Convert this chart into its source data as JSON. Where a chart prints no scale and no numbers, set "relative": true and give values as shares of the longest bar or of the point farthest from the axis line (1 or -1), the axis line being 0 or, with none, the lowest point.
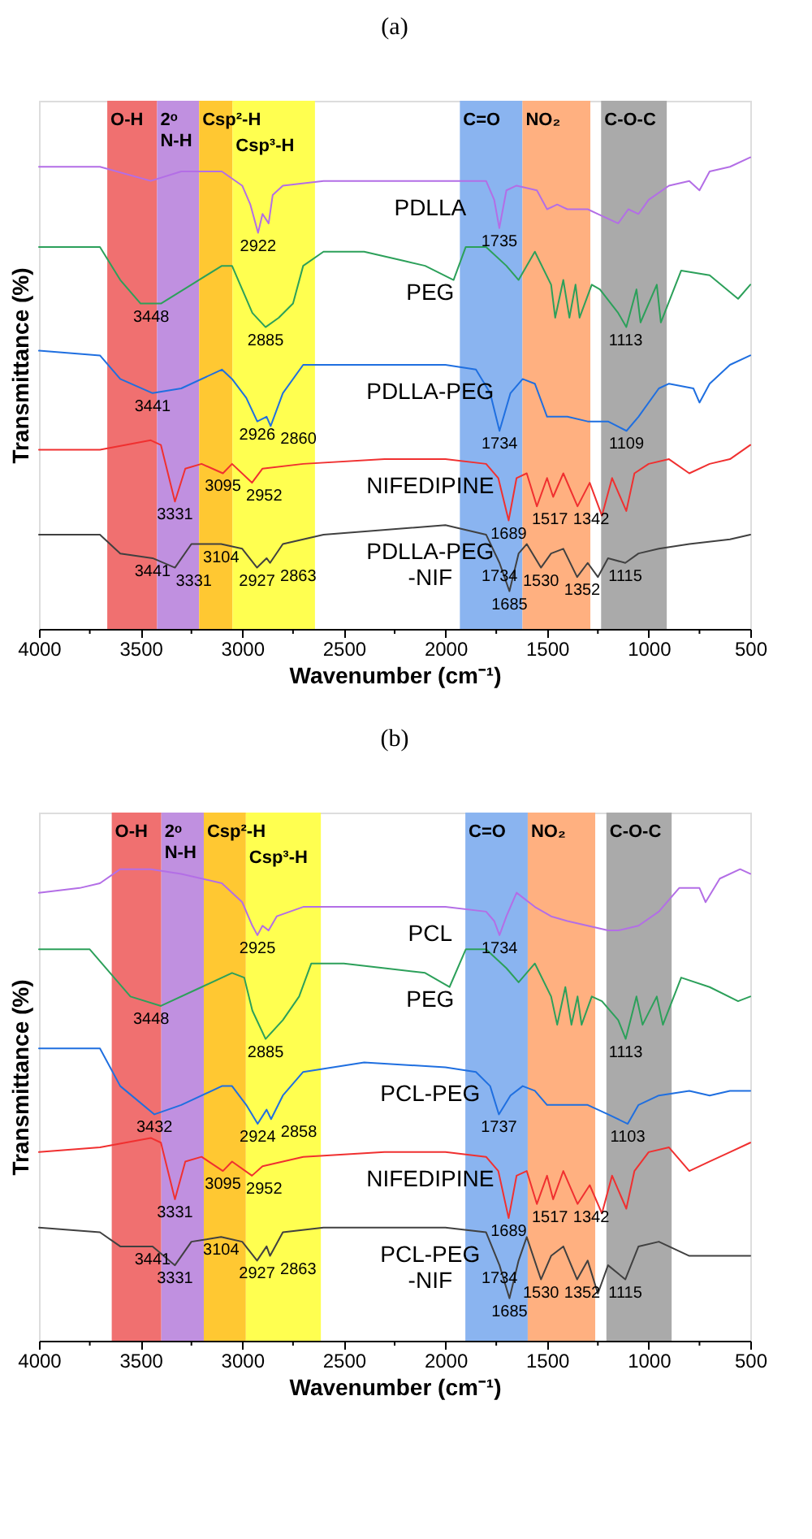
{
  "chart_data": [
    {
      "type": "line",
      "title": "(a)",
      "xlabel": "Wavenumber (cm⁻¹)",
      "ylabel": "Transmittance (%)",
      "relative": true,
      "xlim": [
        4000,
        500
      ],
      "xticks": [
        4000,
        {
          "value": 3750,
          "label": null
        },
        3500,
        {
          "value": 3250,
          "label": null
        },
        3000,
        {
          "value": 2750,
          "label": null
        },
        2500,
        {
          "value": 2250,
          "label": null
        },
        2000,
        {
          "value": 1750,
          "label": null
        },
        1500,
        {
          "value": 1250,
          "label": null
        },
        1000,
        {
          "value": 750,
          "label": null
        },
        500
      ],
      "bands": [
        {
          "axis": "x",
          "from": 3664,
          "to": 3419,
          "label": "O-H",
          "color": "#f07070"
        },
        {
          "axis": "x",
          "from": 3419,
          "to": 3212,
          "label": "2ᵒ N-H",
          "color": "#c090e0"
        },
        {
          "axis": "x",
          "from": 3212,
          "to": 3048,
          "label": "Csp²-H",
          "color": "#ffc832"
        },
        {
          "axis": "x",
          "from": 3048,
          "to": 2642,
          "label": "Csp³-H",
          "color": "#ffff50"
        },
        {
          "axis": "x",
          "from": 1929,
          "to": 1621,
          "label": "C=O",
          "color": "#8ab4f0"
        },
        {
          "axis": "x",
          "from": 1621,
          "to": 1287,
          "label": "NO₂",
          "color": "#ffb080"
        },
        {
          "axis": "x",
          "from": 1234,
          "to": 911,
          "label": "C-O-C",
          "color": "#aaaaaa"
        }
      ],
      "series": [
        {
          "name": "PDLLA",
          "color": "#b36ee6",
          "x": [
            4000,
            3700,
            3450,
            3300,
            3100,
            3000,
            2960,
            2922,
            2900,
            2870,
            2850,
            2800,
            2600,
            2000,
            1800,
            1760,
            1735,
            1700,
            1650,
            1550,
            1500,
            1450,
            1400,
            1300,
            1250,
            1150,
            1100,
            1050,
            1000,
            900,
            800,
            750,
            700,
            600,
            500
          ],
          "values": [
            0.98,
            0.98,
            0.95,
            0.97,
            0.97,
            0.94,
            0.9,
            0.84,
            0.88,
            0.86,
            0.92,
            0.94,
            0.95,
            0.95,
            0.95,
            0.91,
            0.85,
            0.93,
            0.94,
            0.93,
            0.89,
            0.9,
            0.89,
            0.89,
            0.88,
            0.86,
            0.89,
            0.88,
            0.91,
            0.94,
            0.95,
            0.93,
            0.97,
            0.98,
            1
          ]
        },
        {
          "name": "PEG",
          "color": "#2ca05a",
          "x": [
            4000,
            3800,
            3700,
            3600,
            3500,
            3400,
            3250,
            3100,
            3050,
            3000,
            2950,
            2885,
            2820,
            2750,
            2700,
            2600,
            2400,
            2200,
            2100,
            1960,
            1900,
            1800,
            1700,
            1640,
            1560,
            1480,
            1460,
            1420,
            1390,
            1360,
            1340,
            1280,
            1240,
            1150,
            1110,
            1060,
            1040,
            960,
            940,
            840,
            700,
            560,
            500
          ],
          "values": [
            0.81,
            0.81,
            0.81,
            0.74,
            0.69,
            0.69,
            0.73,
            0.77,
            0.77,
            0.72,
            0.67,
            0.64,
            0.66,
            0.69,
            0.77,
            0.8,
            0.8,
            0.78,
            0.77,
            0.74,
            0.81,
            0.81,
            0.77,
            0.74,
            0.8,
            0.73,
            0.66,
            0.74,
            0.66,
            0.73,
            0.66,
            0.73,
            0.72,
            0.67,
            0.64,
            0.72,
            0.65,
            0.73,
            0.65,
            0.76,
            0.75,
            0.7,
            0.73
          ]
        },
        {
          "name": "PDLLA-PEG",
          "color": "#1f6fe0",
          "x": [
            4000,
            3700,
            3600,
            3441,
            3300,
            3100,
            3050,
            2980,
            2926,
            2880,
            2860,
            2800,
            2700,
            2400,
            2000,
            1850,
            1780,
            1734,
            1680,
            1620,
            1560,
            1500,
            1400,
            1300,
            1200,
            1109,
            1050,
            950,
            900,
            780,
            750,
            700,
            600,
            500
          ],
          "values": [
            0.59,
            0.58,
            0.53,
            0.5,
            0.51,
            0.55,
            0.53,
            0.49,
            0.44,
            0.45,
            0.43,
            0.5,
            0.56,
            0.56,
            0.56,
            0.55,
            0.5,
            0.42,
            0.5,
            0.53,
            0.52,
            0.45,
            0.45,
            0.44,
            0.44,
            0.42,
            0.45,
            0.51,
            0.52,
            0.51,
            0.48,
            0.52,
            0.56,
            0.58
          ]
        },
        {
          "name": "NIFEDIPINE",
          "color": "#f03030",
          "x": [
            4000,
            3700,
            3450,
            3400,
            3331,
            3280,
            3200,
            3095,
            3050,
            2952,
            2900,
            2700,
            2300,
            2000,
            1800,
            1740,
            1689,
            1650,
            1600,
            1550,
            1500,
            1470,
            1420,
            1350,
            1290,
            1230,
            1180,
            1110,
            1070,
            1000,
            900,
            800,
            700,
            600,
            500
          ],
          "values": [
            0.38,
            0.38,
            0.4,
            0.39,
            0.27,
            0.34,
            0.35,
            0.33,
            0.35,
            0.31,
            0.34,
            0.35,
            0.36,
            0.36,
            0.35,
            0.32,
            0.23,
            0.32,
            0.33,
            0.26,
            0.32,
            0.28,
            0.33,
            0.26,
            0.31,
            0.24,
            0.32,
            0.25,
            0.33,
            0.35,
            0.36,
            0.33,
            0.35,
            0.36,
            0.39
          ]
        },
        {
          "name": "PDLLA-PEG -NIF",
          "color": "#404040",
          "x": [
            4000,
            3700,
            3600,
            3441,
            3331,
            3250,
            3104,
            3000,
            2927,
            2880,
            2863,
            2800,
            2600,
            2000,
            1800,
            1734,
            1685,
            1640,
            1600,
            1530,
            1480,
            1420,
            1352,
            1300,
            1250,
            1200,
            1115,
            1050,
            950,
            800,
            600,
            500
          ],
          "values": [
            0.2,
            0.2,
            0.16,
            0.15,
            0.13,
            0.18,
            0.18,
            0.17,
            0.13,
            0.15,
            0.14,
            0.18,
            0.2,
            0.22,
            0.2,
            0.14,
            0.08,
            0.16,
            0.18,
            0.13,
            0.16,
            0.17,
            0.11,
            0.14,
            0.11,
            0.15,
            0.14,
            0.16,
            0.17,
            0.18,
            0.19,
            0.2
          ]
        }
      ],
      "annotations": [
        {
          "text": "2922",
          "x": 2922,
          "y": 0.84
        },
        {
          "text": "1735",
          "x": 1735,
          "y": 0.85
        },
        {
          "text": "3448",
          "x": 3448,
          "y": 0.69
        },
        {
          "text": "2885",
          "x": 2885,
          "y": 0.64
        },
        {
          "text": "1113",
          "x": 1113,
          "y": 0.64
        },
        {
          "text": "3441",
          "x": 3441,
          "y": 0.5
        },
        {
          "text": "2926",
          "x": 2926,
          "y": 0.44
        },
        {
          "text": "2860",
          "x": 2860,
          "y": 0.43
        },
        {
          "text": "1734",
          "x": 1734,
          "y": 0.42
        },
        {
          "text": "1109",
          "x": 1109,
          "y": 0.42
        },
        {
          "text": "3331",
          "x": 3331,
          "y": 0.27
        },
        {
          "text": "3095",
          "x": 3095,
          "y": 0.33
        },
        {
          "text": "2952",
          "x": 2952,
          "y": 0.31
        },
        {
          "text": "1689",
          "x": 1689,
          "y": 0.23
        },
        {
          "text": "1517",
          "x": 1517,
          "y": 0.26
        },
        {
          "text": "1342",
          "x": 1342,
          "y": 0.26
        },
        {
          "text": "3441",
          "x": 3441,
          "y": 0.15
        },
        {
          "text": "3331",
          "x": 3331,
          "y": 0.13
        },
        {
          "text": "3104",
          "x": 3104,
          "y": 0.18
        },
        {
          "text": "2927",
          "x": 2927,
          "y": 0.13
        },
        {
          "text": "2863",
          "x": 2863,
          "y": 0.14
        },
        {
          "text": "1734",
          "x": 1734,
          "y": 0.14
        },
        {
          "text": "1685",
          "x": 1685,
          "y": 0.08
        },
        {
          "text": "1530",
          "x": 1530,
          "y": 0.13
        },
        {
          "text": "1352",
          "x": 1352,
          "y": 0.11
        },
        {
          "text": "1115",
          "x": 1115,
          "y": 0.14
        }
      ]
    },
    {
      "type": "line",
      "title": "(b)",
      "xlabel": "Wavenumber (cm⁻¹)",
      "ylabel": "Transmittance (%)",
      "relative": true,
      "xlim": [
        4000,
        500
      ],
      "xticks": [
        4000,
        {
          "value": 3750,
          "label": null
        },
        3500,
        {
          "value": 3250,
          "label": null
        },
        3000,
        {
          "value": 2750,
          "label": null
        },
        2500,
        {
          "value": 2250,
          "label": null
        },
        2000,
        {
          "value": 1750,
          "label": null
        },
        1500,
        {
          "value": 1250,
          "label": null
        },
        1000,
        {
          "value": 750,
          "label": null
        },
        500
      ],
      "bands": [
        {
          "axis": "x",
          "from": 3642,
          "to": 3398,
          "label": "O-H",
          "color": "#f07070"
        },
        {
          "axis": "x",
          "from": 3398,
          "to": 3189,
          "label": "2ᵒ N-H",
          "color": "#c090e0"
        },
        {
          "axis": "x",
          "from": 3189,
          "to": 2982,
          "label": "Csp²-H",
          "color": "#ffc832"
        },
        {
          "axis": "x",
          "from": 2982,
          "to": 2613,
          "label": "Csp³-H",
          "color": "#ffff50"
        },
        {
          "axis": "x",
          "from": 1902,
          "to": 1595,
          "label": "C=O",
          "color": "#8ab4f0"
        },
        {
          "axis": "x",
          "from": 1595,
          "to": 1263,
          "label": "NO₂",
          "color": "#ffb080"
        },
        {
          "axis": "x",
          "from": 1208,
          "to": 887,
          "label": "C-O-C",
          "color": "#aaaaaa"
        }
      ],
      "series": [
        {
          "name": "PCL",
          "color": "#b36ee6",
          "x": [
            4000,
            3800,
            3700,
            3600,
            3450,
            3300,
            3100,
            3000,
            2950,
            2925,
            2900,
            2870,
            2830,
            2700,
            2400,
            2000,
            1800,
            1760,
            1734,
            1700,
            1650,
            1560,
            1480,
            1400,
            1300,
            1200,
            1150,
            1050,
            950,
            850,
            750,
            720,
            650,
            550,
            500
          ],
          "values": [
            0.95,
            0.96,
            0.97,
            1,
            1,
            0.99,
            0.97,
            0.93,
            0.88,
            0.86,
            0.88,
            0.87,
            0.9,
            0.92,
            0.92,
            0.92,
            0.91,
            0.89,
            0.86,
            0.9,
            0.95,
            0.92,
            0.9,
            0.89,
            0.88,
            0.87,
            0.87,
            0.88,
            0.91,
            0.96,
            0.96,
            0.93,
            0.98,
            1,
            0.99
          ]
        },
        {
          "name": "PEG",
          "color": "#2ca05a",
          "x": [
            4000,
            3750,
            3650,
            3550,
            3400,
            3200,
            3050,
            2990,
            2950,
            2885,
            2800,
            2720,
            2660,
            2500,
            2300,
            2100,
            1980,
            1900,
            1800,
            1700,
            1640,
            1560,
            1480,
            1450,
            1410,
            1380,
            1350,
            1330,
            1280,
            1230,
            1150,
            1113,
            1060,
            1030,
            960,
            930,
            840,
            700,
            560,
            500
          ],
          "values": [
            0.83,
            0.83,
            0.78,
            0.73,
            0.71,
            0.75,
            0.78,
            0.77,
            0.7,
            0.64,
            0.68,
            0.73,
            0.8,
            0.8,
            0.79,
            0.78,
            0.75,
            0.83,
            0.83,
            0.79,
            0.76,
            0.8,
            0.73,
            0.67,
            0.75,
            0.67,
            0.73,
            0.67,
            0.73,
            0.72,
            0.68,
            0.64,
            0.73,
            0.67,
            0.73,
            0.67,
            0.77,
            0.75,
            0.72,
            0.73
          ]
        },
        {
          "name": "PCL-PEG",
          "color": "#1f6fe0",
          "x": [
            4000,
            3700,
            3600,
            3432,
            3300,
            3100,
            3050,
            2980,
            2924,
            2880,
            2858,
            2800,
            2700,
            2400,
            2000,
            1850,
            1780,
            1737,
            1680,
            1620,
            1560,
            1500,
            1400,
            1300,
            1200,
            1103,
            1050,
            950,
            800,
            700,
            600,
            500
          ],
          "values": [
            0.62,
            0.62,
            0.54,
            0.48,
            0.5,
            0.54,
            0.54,
            0.5,
            0.46,
            0.49,
            0.47,
            0.52,
            0.57,
            0.59,
            0.58,
            0.57,
            0.54,
            0.48,
            0.52,
            0.54,
            0.53,
            0.5,
            0.5,
            0.5,
            0.48,
            0.46,
            0.5,
            0.52,
            0.53,
            0.52,
            0.53,
            0.53
          ]
        },
        {
          "name": "NIFEDIPINE",
          "color": "#f03030",
          "x": [
            4000,
            3700,
            3450,
            3400,
            3331,
            3280,
            3200,
            3095,
            3050,
            2952,
            2900,
            2700,
            2300,
            2000,
            1800,
            1740,
            1689,
            1650,
            1600,
            1550,
            1500,
            1470,
            1420,
            1350,
            1290,
            1230,
            1180,
            1110,
            1070,
            1000,
            900,
            800,
            700,
            600,
            500
          ],
          "values": [
            0.4,
            0.41,
            0.43,
            0.42,
            0.3,
            0.38,
            0.39,
            0.36,
            0.38,
            0.35,
            0.37,
            0.39,
            0.4,
            0.4,
            0.39,
            0.36,
            0.26,
            0.35,
            0.36,
            0.29,
            0.35,
            0.3,
            0.36,
            0.29,
            0.33,
            0.27,
            0.35,
            0.28,
            0.36,
            0.4,
            0.41,
            0.36,
            0.38,
            0.4,
            0.42
          ]
        },
        {
          "name": "PCL-PEG -NIF",
          "color": "#404040",
          "x": [
            4000,
            3700,
            3600,
            3441,
            3331,
            3250,
            3104,
            3000,
            2927,
            2880,
            2863,
            2800,
            2600,
            2000,
            1800,
            1734,
            1685,
            1640,
            1600,
            1530,
            1480,
            1420,
            1352,
            1300,
            1250,
            1200,
            1115,
            1050,
            950,
            800,
            600,
            500
          ],
          "values": [
            0.24,
            0.23,
            0.2,
            0.2,
            0.16,
            0.21,
            0.22,
            0.21,
            0.17,
            0.2,
            0.18,
            0.23,
            0.24,
            0.24,
            0.23,
            0.16,
            0.09,
            0.17,
            0.22,
            0.13,
            0.18,
            0.2,
            0.13,
            0.17,
            0.1,
            0.16,
            0.13,
            0.2,
            0.21,
            0.18,
            0.18,
            0.18
          ]
        }
      ],
      "annotations": [
        {
          "text": "2925",
          "x": 2925,
          "y": 0.86
        },
        {
          "text": "1734",
          "x": 1734,
          "y": 0.86
        },
        {
          "text": "3448",
          "x": 3448,
          "y": 0.71
        },
        {
          "text": "2885",
          "x": 2885,
          "y": 0.64
        },
        {
          "text": "1113",
          "x": 1113,
          "y": 0.64
        },
        {
          "text": "3432",
          "x": 3432,
          "y": 0.48
        },
        {
          "text": "2924",
          "x": 2924,
          "y": 0.46
        },
        {
          "text": "2858",
          "x": 2858,
          "y": 0.47
        },
        {
          "text": "1737",
          "x": 1737,
          "y": 0.48
        },
        {
          "text": "1103",
          "x": 1103,
          "y": 0.46
        },
        {
          "text": "3331",
          "x": 3331,
          "y": 0.3
        },
        {
          "text": "3095",
          "x": 3095,
          "y": 0.36
        },
        {
          "text": "2952",
          "x": 2952,
          "y": 0.35
        },
        {
          "text": "1689",
          "x": 1689,
          "y": 0.26
        },
        {
          "text": "1517",
          "x": 1517,
          "y": 0.29
        },
        {
          "text": "1342",
          "x": 1342,
          "y": 0.29
        },
        {
          "text": "3441",
          "x": 3441,
          "y": 0.2
        },
        {
          "text": "3331",
          "x": 3331,
          "y": 0.16
        },
        {
          "text": "3104",
          "x": 3104,
          "y": 0.22
        },
        {
          "text": "2927",
          "x": 2927,
          "y": 0.17
        },
        {
          "text": "2863",
          "x": 2863,
          "y": 0.18
        },
        {
          "text": "1734",
          "x": 1734,
          "y": 0.16
        },
        {
          "text": "1685",
          "x": 1685,
          "y": 0.09
        },
        {
          "text": "1530",
          "x": 1530,
          "y": 0.13
        },
        {
          "text": "1352",
          "x": 1352,
          "y": 0.13
        },
        {
          "text": "1115",
          "x": 1115,
          "y": 0.13
        }
      ]
    }
  ]
}
